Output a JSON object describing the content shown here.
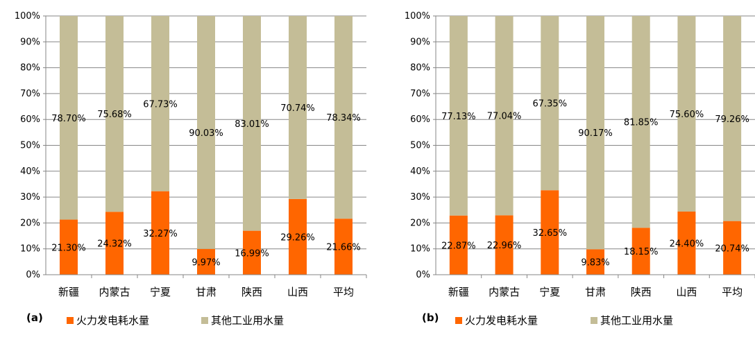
{
  "colors": {
    "thermal": "#FF6600",
    "other": "#C4BD97",
    "grid": "#868686",
    "text": "#000000"
  },
  "legend": {
    "thermal_label": "火力发电耗水量",
    "other_label": "其他工业用水量"
  },
  "chart_data": [
    {
      "type": "bar",
      "stacked": true,
      "panel_label": "(a)",
      "categories": [
        "新疆",
        "内蒙古",
        "宁夏",
        "甘肃",
        "陕西",
        "山西",
        "平均"
      ],
      "series": [
        {
          "name": "火力发电耗水量",
          "values": [
            21.3,
            24.32,
            32.27,
            9.97,
            16.99,
            29.26,
            21.66
          ]
        },
        {
          "name": "其他工业用水量",
          "values": [
            78.7,
            75.68,
            67.73,
            90.03,
            83.01,
            70.74,
            78.34
          ]
        }
      ],
      "data_labels": {
        "thermal": [
          "21.30%",
          "24.32%",
          "32.27%",
          "9.97%",
          "16.99%",
          "29.26%",
          "21.66%"
        ],
        "other": [
          "78.70%",
          "75.68%",
          "67.73%",
          "90.03%",
          "83.01%",
          "70.74%",
          "78.34%"
        ]
      },
      "yticks": [
        "0%",
        "10%",
        "20%",
        "30%",
        "40%",
        "50%",
        "60%",
        "70%",
        "80%",
        "90%",
        "100%"
      ],
      "ylim": [
        0,
        100
      ],
      "grid": true,
      "legend_position": "bottom"
    },
    {
      "type": "bar",
      "stacked": true,
      "panel_label": "(b)",
      "categories": [
        "新疆",
        "内蒙古",
        "宁夏",
        "甘肃",
        "陕西",
        "山西",
        "平均"
      ],
      "series": [
        {
          "name": "火力发电耗水量",
          "values": [
            22.87,
            22.96,
            32.65,
            9.83,
            18.15,
            24.4,
            20.74
          ]
        },
        {
          "name": "其他工业用水量",
          "values": [
            77.13,
            77.04,
            67.35,
            90.17,
            81.85,
            75.6,
            79.26
          ]
        }
      ],
      "data_labels": {
        "thermal": [
          "22.87%",
          "22.96%",
          "32.65%",
          "9.83%",
          "18.15%",
          "24.40%",
          "20.74%"
        ],
        "other": [
          "77.13%",
          "77.04%",
          "67.35%",
          "90.17%",
          "81.85%",
          "75.60%",
          "79.26%"
        ]
      },
      "yticks": [
        "0%",
        "10%",
        "20%",
        "30%",
        "40%",
        "50%",
        "60%",
        "70%",
        "80%",
        "90%",
        "100%"
      ],
      "ylim": [
        0,
        100
      ],
      "grid": true,
      "legend_position": "bottom"
    }
  ]
}
